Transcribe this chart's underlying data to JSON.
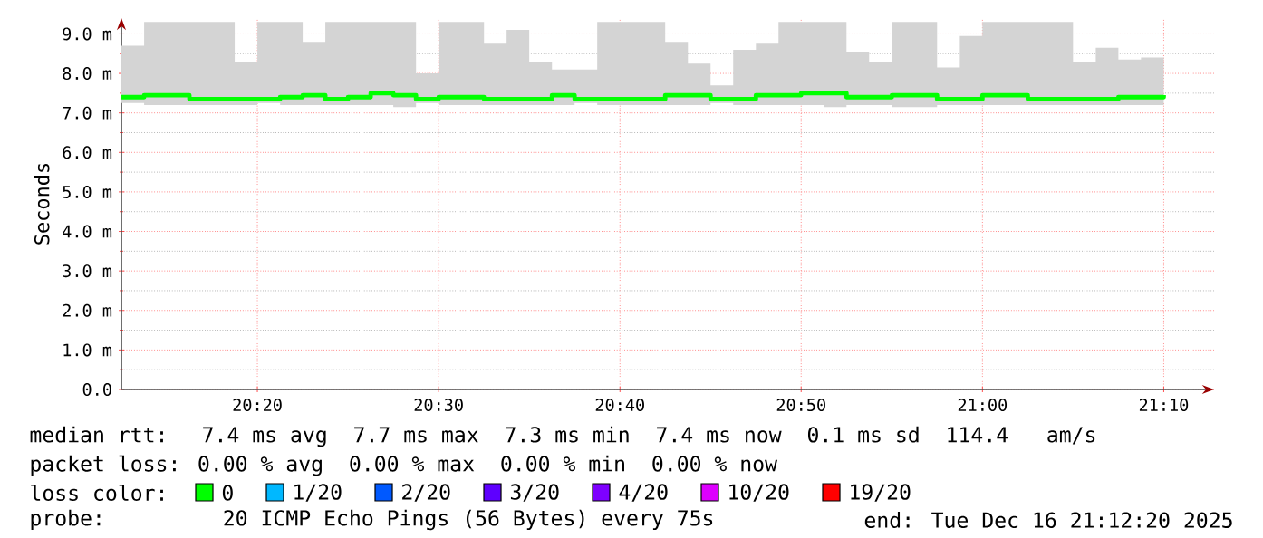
{
  "chart_data": {
    "type": "step",
    "ylabel": "Seconds",
    "x": [
      20.2083,
      20.2292,
      20.25,
      20.2708,
      20.2917,
      20.3125,
      20.3333,
      20.3542,
      20.375,
      20.3958,
      20.4167,
      20.4375,
      20.4583,
      20.4792,
      20.5,
      20.5208,
      20.5417,
      20.5625,
      20.5833,
      20.6042,
      20.625,
      20.6458,
      20.6667,
      20.6875,
      20.7083,
      20.7292,
      20.75,
      20.7708,
      20.7917,
      20.8125,
      20.8333,
      20.8542,
      20.875,
      20.8958,
      20.9167,
      20.9375,
      20.9583,
      20.9792,
      21.0,
      21.0208,
      21.0417,
      21.0625,
      21.0833,
      21.1042,
      21.125,
      21.1458,
      21.1667
    ],
    "xlim": [
      20.2083,
      21.213
    ],
    "xticks": [
      {
        "value": 20.3333,
        "label": "20:20"
      },
      {
        "value": 20.5,
        "label": "20:30"
      },
      {
        "value": 20.6667,
        "label": "20:40"
      },
      {
        "value": 20.8333,
        "label": "20:50"
      },
      {
        "value": 21.0,
        "label": "21:00"
      },
      {
        "value": 21.1667,
        "label": "21:10"
      }
    ],
    "ylim": [
      0,
      9.4
    ],
    "yticks": [
      {
        "value": 0,
        "label": "0.0"
      },
      {
        "value": 1,
        "label": "1.0 m"
      },
      {
        "value": 2,
        "label": "2.0 m"
      },
      {
        "value": 3,
        "label": "3.0 m"
      },
      {
        "value": 4,
        "label": "4.0 m"
      },
      {
        "value": 5,
        "label": "5.0 m"
      },
      {
        "value": 6,
        "label": "6.0 m"
      },
      {
        "value": 7,
        "label": "7.0 m"
      },
      {
        "value": 8,
        "label": "8.0 m"
      },
      {
        "value": 9,
        "label": "9.0 m"
      }
    ],
    "grid": true,
    "legend": "bottom",
    "legend_title": "loss color:",
    "series": [
      {
        "name": "0",
        "color": "#00ff00",
        "values": [
          7.4,
          7.45,
          7.45,
          7.35,
          7.35,
          7.35,
          7.35,
          7.4,
          7.45,
          7.35,
          7.4,
          7.5,
          7.45,
          7.35,
          7.4,
          7.4,
          7.35,
          7.35,
          7.35,
          7.45,
          7.35,
          7.35,
          7.35,
          7.35,
          7.45,
          7.45,
          7.35,
          7.35,
          7.45,
          7.45,
          7.5,
          7.5,
          7.4,
          7.4,
          7.45,
          7.45,
          7.35,
          7.35,
          7.45,
          7.45,
          7.35,
          7.35,
          7.35,
          7.35,
          7.4,
          7.4,
          7.45
        ],
        "lower": [
          7.25,
          7.2,
          7.2,
          7.2,
          7.2,
          7.2,
          7.25,
          7.2,
          7.2,
          7.2,
          7.2,
          7.2,
          7.15,
          7.25,
          7.2,
          7.2,
          7.2,
          7.2,
          7.2,
          7.2,
          7.25,
          7.2,
          7.2,
          7.2,
          7.2,
          7.2,
          7.25,
          7.2,
          7.2,
          7.2,
          7.2,
          7.15,
          7.2,
          7.2,
          7.15,
          7.15,
          7.2,
          7.2,
          7.2,
          7.2,
          7.2,
          7.2,
          7.2,
          7.2,
          7.2,
          7.2,
          7.2
        ],
        "upper": [
          8.7,
          9.3,
          9.3,
          9.3,
          9.3,
          8.3,
          9.3,
          9.3,
          8.8,
          9.3,
          9.3,
          9.3,
          9.3,
          8.0,
          9.3,
          9.3,
          8.75,
          9.1,
          8.3,
          8.1,
          8.1,
          9.3,
          9.3,
          9.3,
          8.8,
          8.25,
          7.7,
          8.6,
          8.75,
          9.3,
          9.3,
          9.3,
          8.55,
          8.3,
          9.3,
          9.3,
          8.15,
          8.95,
          9.3,
          9.3,
          9.3,
          9.3,
          8.3,
          8.65,
          8.35,
          8.4,
          9.3
        ]
      },
      {
        "name": "1/20",
        "color": "#00b8ff",
        "values": [
          null,
          null,
          null,
          null,
          null,
          null,
          null,
          null,
          null,
          null,
          null,
          null,
          null,
          null,
          null,
          null,
          null,
          null,
          null,
          null,
          null,
          null,
          null,
          null,
          null,
          null,
          null,
          null,
          null,
          null,
          null,
          null,
          null,
          null,
          null,
          null,
          null,
          null,
          null,
          null,
          null,
          null,
          null,
          null,
          null,
          null,
          null
        ]
      },
      {
        "name": "2/20",
        "color": "#0059ff",
        "values": [
          null,
          null,
          null,
          null,
          null,
          null,
          null,
          null,
          null,
          null,
          null,
          null,
          null,
          null,
          null,
          null,
          null,
          null,
          null,
          null,
          null,
          null,
          null,
          null,
          null,
          null,
          null,
          null,
          null,
          null,
          null,
          null,
          null,
          null,
          null,
          null,
          null,
          null,
          null,
          null,
          null,
          null,
          null,
          null,
          null,
          null,
          null
        ]
      },
      {
        "name": "3/20",
        "color": "#5e00ff",
        "values": [
          null,
          null,
          null,
          null,
          null,
          null,
          null,
          null,
          null,
          null,
          null,
          null,
          null,
          null,
          null,
          null,
          null,
          null,
          null,
          null,
          null,
          null,
          null,
          null,
          null,
          null,
          null,
          null,
          null,
          null,
          null,
          null,
          null,
          null,
          null,
          null,
          null,
          null,
          null,
          null,
          null,
          null,
          null,
          null,
          null,
          null,
          null
        ]
      },
      {
        "name": "4/20",
        "color": "#7e00ff",
        "values": [
          null,
          null,
          null,
          null,
          null,
          null,
          null,
          null,
          null,
          null,
          null,
          null,
          null,
          null,
          null,
          null,
          null,
          null,
          null,
          null,
          null,
          null,
          null,
          null,
          null,
          null,
          null,
          null,
          null,
          null,
          null,
          null,
          null,
          null,
          null,
          null,
          null,
          null,
          null,
          null,
          null,
          null,
          null,
          null,
          null,
          null,
          null
        ]
      },
      {
        "name": "10/20",
        "color": "#dd00ff",
        "values": [
          null,
          null,
          null,
          null,
          null,
          null,
          null,
          null,
          null,
          null,
          null,
          null,
          null,
          null,
          null,
          null,
          null,
          null,
          null,
          null,
          null,
          null,
          null,
          null,
          null,
          null,
          null,
          null,
          null,
          null,
          null,
          null,
          null,
          null,
          null,
          null,
          null,
          null,
          null,
          null,
          null,
          null,
          null,
          null,
          null,
          null,
          null
        ]
      },
      {
        "name": "19/20",
        "color": "#ff0000",
        "values": [
          null,
          null,
          null,
          null,
          null,
          null,
          null,
          null,
          null,
          null,
          null,
          null,
          null,
          null,
          null,
          null,
          null,
          null,
          null,
          null,
          null,
          null,
          null,
          null,
          null,
          null,
          null,
          null,
          null,
          null,
          null,
          null,
          null,
          null,
          null,
          null,
          null,
          null,
          null,
          null,
          null,
          null,
          null,
          null,
          null,
          null,
          null
        ]
      }
    ],
    "annotations": [
      "median rtt:  7.4 ms avg  7.7 ms max  7.3 ms min  7.4 ms now  0.1 ms sd  114.4   am/s",
      "packet loss: 0.00 % avg  0.00 % max  0.00 % min  0.00 % now",
      "probe:       20 ICMP Echo Pings (56 Bytes) every 75s",
      "end: Tue Dec 16 21:12:20 2025"
    ]
  }
}
